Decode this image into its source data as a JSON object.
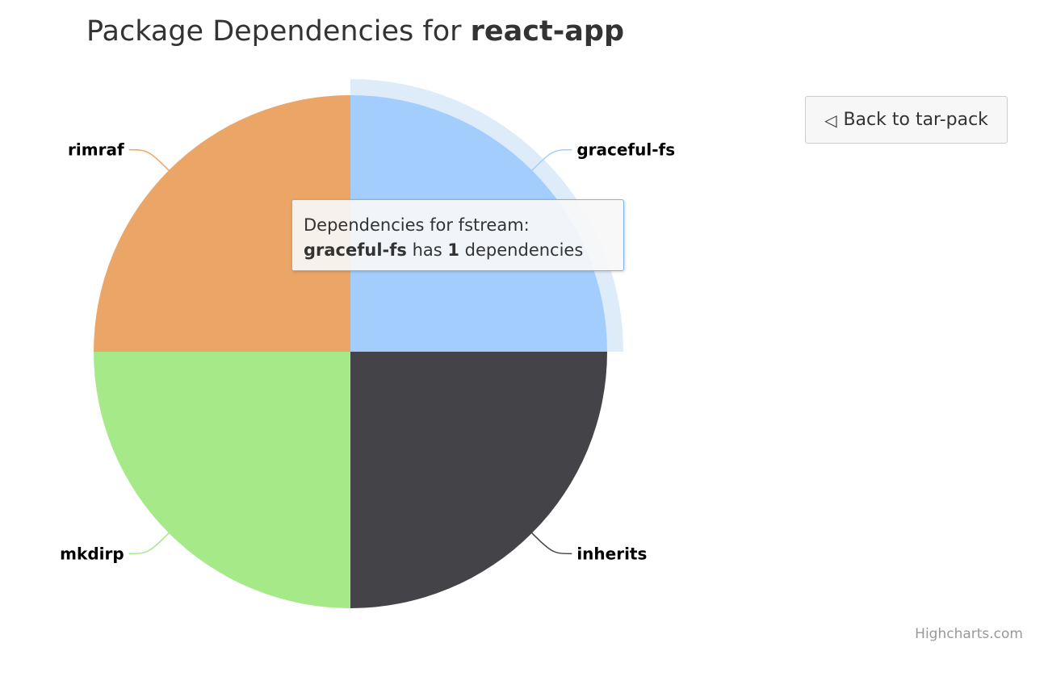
{
  "title": {
    "prefix": "Package Dependencies for ",
    "package": "react-app"
  },
  "back_button": {
    "label": "Back to tar-pack",
    "icon": "triangle-left-icon"
  },
  "tooltip": {
    "header": "Dependencies for fstream:",
    "point_name": "graceful-fs",
    "text_has": " has ",
    "count": "1",
    "text_suffix": " dependencies"
  },
  "credits": "Highcharts.com",
  "chart_data": {
    "type": "pie",
    "title": "Package Dependencies for react-app",
    "hovered": "graceful-fs",
    "series": [
      {
        "name": "",
        "data": [
          {
            "name": "graceful-fs",
            "y": 1,
            "color": "#a3cdfc"
          },
          {
            "name": "inherits",
            "y": 1,
            "color": "#434348"
          },
          {
            "name": "mkdirp",
            "y": 1,
            "color": "#a6e989"
          },
          {
            "name": "rimraf",
            "y": 1,
            "color": "#eba566"
          }
        ]
      }
    ],
    "data_labels": "outside, connector lines",
    "halo_color": "#7cb5ec"
  }
}
